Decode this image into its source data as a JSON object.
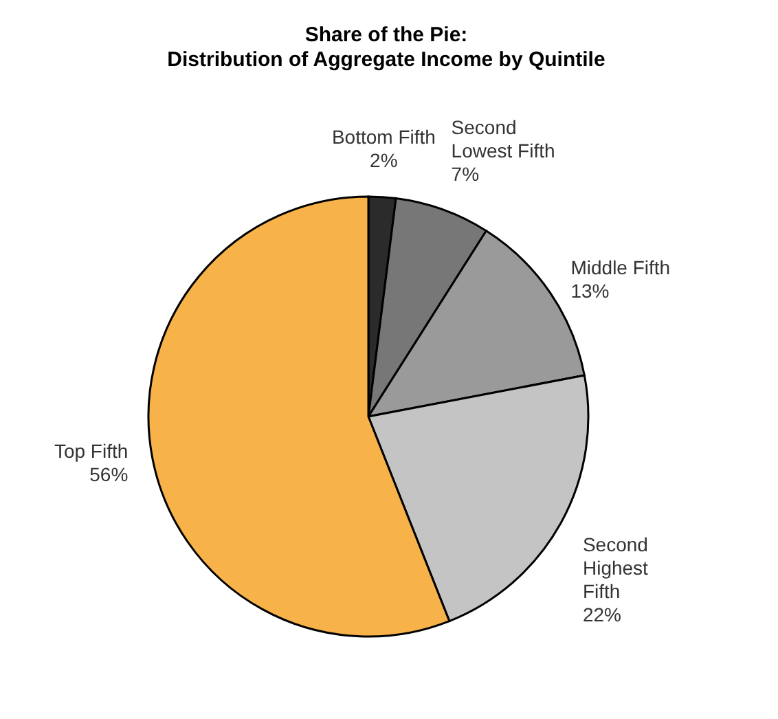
{
  "chart_data": {
    "type": "pie",
    "title": "Share of the Pie:\nDistribution of Aggregate Income by Quintile",
    "categories": [
      "Bottom Fifth",
      "Second Lowest Fifth",
      "Middle Fifth",
      "Second Highest Fifth",
      "Top Fifth"
    ],
    "values": [
      2,
      7,
      13,
      22,
      56
    ],
    "value_labels": [
      "2%",
      "7%",
      "13%",
      "22%",
      "56%"
    ],
    "colors": [
      "#2b2b2b",
      "#777777",
      "#9a9a9a",
      "#c4c4c4",
      "#f7b24a"
    ]
  }
}
